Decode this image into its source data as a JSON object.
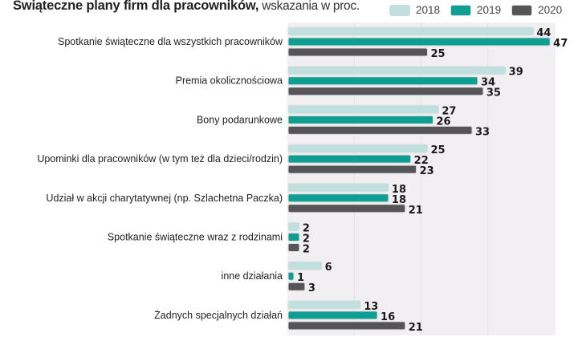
{
  "title": {
    "bold": "Świąteczne plany firm dla pracowników,",
    "rest": " wskazania w proc."
  },
  "colors": {
    "2018": "#bfe0df",
    "2019": "#0f9e92",
    "2020": "#555558",
    "background": "#f2eff2",
    "grid": "#e4e0e4"
  },
  "chart_data": {
    "type": "bar",
    "orientation": "horizontal",
    "title": "Świąteczne plany firm dla pracowników, wskazania w proc.",
    "xlabel": "",
    "ylabel": "",
    "xlim": [
      0,
      48
    ],
    "grid": true,
    "legend": "top-right",
    "categories": [
      "Spotkanie świąteczne dla wszystkich pracowników",
      "Premia okolicznościowa",
      "Bony podarunkowe",
      "Upominki dla pracowników (w tym też dla dzieci/rodzin)",
      "Udział w akcji charytatywnej (np. Szlachetna Paczka)",
      "Spotkanie świąteczne wraz z rodzinami",
      "inne działania",
      "Żadnych specjalnych działań"
    ],
    "series": [
      {
        "name": "2018",
        "values": [
          44,
          39,
          27,
          25,
          18,
          2,
          6,
          13
        ]
      },
      {
        "name": "2019",
        "values": [
          47,
          34,
          26,
          22,
          18,
          2,
          1,
          16
        ]
      },
      {
        "name": "2020",
        "values": [
          25,
          35,
          33,
          23,
          21,
          2,
          3,
          21
        ]
      }
    ]
  }
}
